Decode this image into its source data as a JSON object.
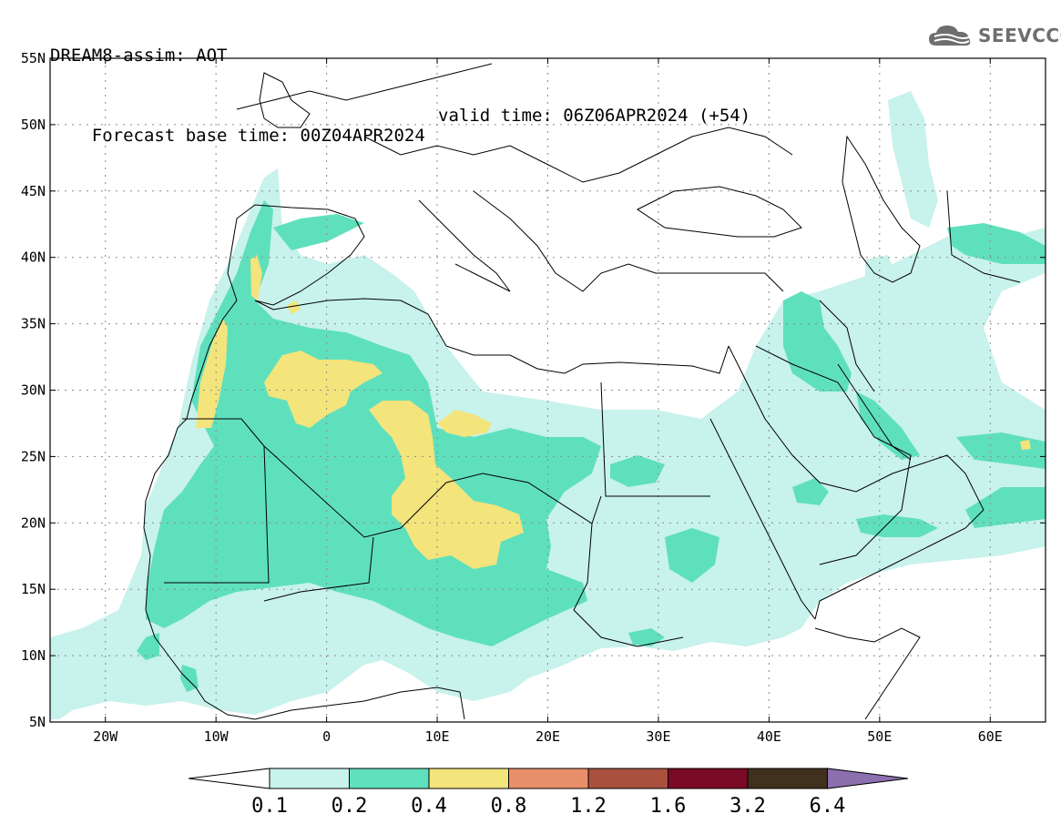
{
  "title": {
    "line1": "DREAM8-assim: AOT",
    "line2_base": "Forecast base time: 00Z04APR2024",
    "line2_valid": "valid time: 06Z06APR2024 (+54)"
  },
  "logo": {
    "text": "SEEVCCC",
    "icon": "cloud-icon"
  },
  "map": {
    "lon_range": [
      -25,
      65
    ],
    "lat_range": [
      5,
      55
    ],
    "lat_ticks": [
      "55N",
      "50N",
      "45N",
      "40N",
      "35N",
      "30N",
      "25N",
      "20N",
      "15N",
      "10N",
      "5N"
    ],
    "lon_ticks": [
      "20W",
      "10W",
      "0",
      "10E",
      "20E",
      "30E",
      "40E",
      "50E",
      "60E"
    ],
    "grid": true,
    "colors": {
      "c01": "#c8f2ec",
      "c02": "#5fe0bc",
      "c04": "#f3e47c",
      "c08": "#e98f6a",
      "c12": "#a9503f",
      "c16": "#7a0a25",
      "c32": "#40301e",
      "c64": "#8c6fae",
      "coast": "#000000"
    }
  },
  "colorbar": {
    "labels": [
      "0.1",
      "0.2",
      "0.4",
      "0.8",
      "1.2",
      "1.6",
      "3.2",
      "6.4"
    ],
    "colors": [
      "#ffffff",
      "#c8f2ec",
      "#5fe0bc",
      "#f3e47c",
      "#e98f6a",
      "#a9503f",
      "#7a0a25",
      "#40301e",
      "#8c6fae"
    ]
  }
}
